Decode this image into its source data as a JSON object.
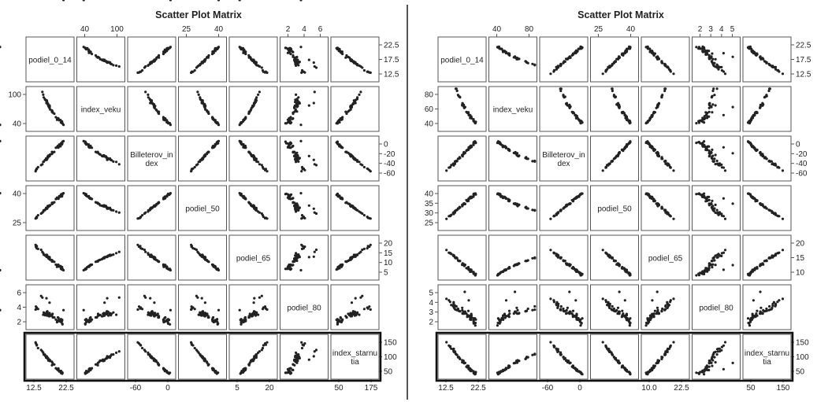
{
  "chart_data": [
    {
      "type": "scatter",
      "title": "Scatter Plot Matrix",
      "variables": [
        "podiel_0_14",
        "index_veku",
        "Billeterov_in dex",
        "podiel_50",
        "podiel_65",
        "podiel_80",
        "index_starnu tia"
      ],
      "top_ticks": [
        [],
        [
          "40",
          "100"
        ],
        [],
        [
          "25",
          "40"
        ],
        [],
        [
          "2",
          "4",
          "6"
        ],
        []
      ],
      "right_ticks": [
        [
          "22.5",
          "17.5",
          "12.5"
        ],
        [],
        [
          "0",
          "-20",
          "-40",
          "-60"
        ],
        [],
        [
          "20",
          "15",
          "10",
          "5"
        ],
        [],
        [
          "150",
          "100",
          "50"
        ]
      ],
      "left_ticks": [
        [],
        [
          "100",
          "40"
        ],
        [],
        [
          "40",
          "25"
        ],
        [],
        [
          "6",
          "4",
          "2"
        ],
        []
      ],
      "bottom_ticks": [
        [
          "12.5",
          "22.5"
        ],
        [],
        [
          "-60",
          "0"
        ],
        [],
        [
          "5",
          "20"
        ],
        [],
        [
          "50",
          "175"
        ]
      ],
      "ranges": [
        [
          9,
          26
        ],
        [
          15,
          120
        ],
        [
          -75,
          8
        ],
        [
          20,
          45
        ],
        [
          2,
          24
        ],
        [
          1,
          7.5
        ],
        [
          20,
          185
        ]
      ],
      "highlighted_row": 6
    },
    {
      "type": "scatter",
      "title": "Scatter Plot Matrix",
      "variables": [
        "podiel_0_14",
        "index_veku",
        "Billeterov_in dex",
        "podiel_50",
        "podiel_65",
        "podiel_80",
        "index_starnu tia"
      ],
      "top_ticks": [
        [],
        [
          "40",
          "80"
        ],
        [],
        [
          "25",
          "40"
        ],
        [],
        [
          "2",
          "3",
          "4",
          "5"
        ],
        []
      ],
      "right_ticks": [
        [
          "22.5",
          "17.5",
          "12.5"
        ],
        [],
        [
          "0",
          "-20",
          "-40",
          "-60"
        ],
        [],
        [
          "20",
          "15",
          "10"
        ],
        [],
        [
          "150",
          "100",
          "50"
        ]
      ],
      "left_ticks": [
        [],
        [
          "80",
          "60",
          "40"
        ],
        [],
        [
          "40",
          "35",
          "30",
          "25"
        ],
        [],
        [
          "5",
          "4",
          "3",
          "2"
        ],
        []
      ],
      "bottom_ticks": [
        [
          "12.5",
          "22.5"
        ],
        [],
        [
          "-60",
          "0"
        ],
        [],
        [
          "10.0",
          "22.5"
        ],
        [],
        [
          "50",
          "150"
        ]
      ],
      "ranges": [
        [
          9,
          26
        ],
        [
          15,
          100
        ],
        [
          -75,
          8
        ],
        [
          20,
          45
        ],
        [
          5,
          26
        ],
        [
          1,
          5.8
        ],
        [
          20,
          185
        ]
      ],
      "highlighted_row": 6
    }
  ]
}
